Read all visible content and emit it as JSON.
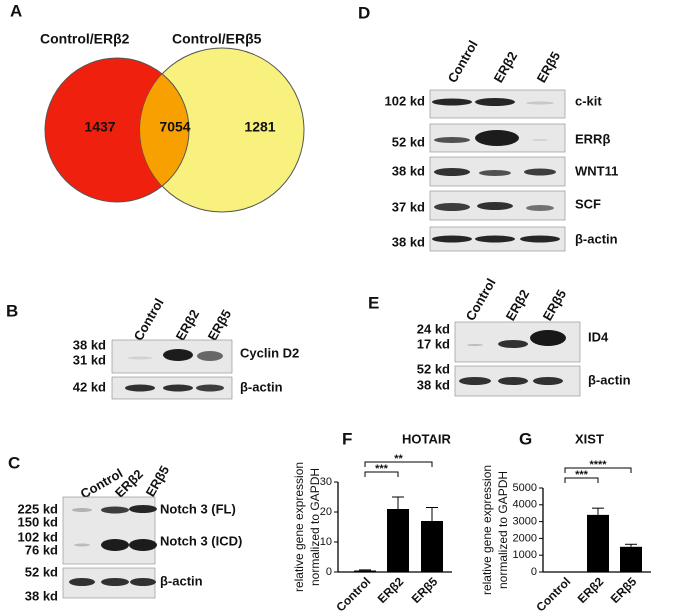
{
  "panels": {
    "A": {
      "label": "A",
      "sets": [
        "Control/ERβ2",
        "Control/ERβ5"
      ],
      "counts": [
        1437,
        7054,
        1281
      ]
    },
    "B": {
      "label": "B",
      "lanes": [
        "Control",
        "ERβ2",
        "ERβ5"
      ],
      "markers": [
        "38 kd",
        "31 kd",
        "42 kd"
      ],
      "proteins": [
        "Cyclin D2",
        "β-actin"
      ]
    },
    "C": {
      "label": "C",
      "lanes": [
        "Control",
        "ERβ2",
        "ERβ5"
      ],
      "markers": [
        "225 kd",
        "150 kd",
        "102 kd",
        "76 kd",
        "52 kd",
        "38 kd"
      ],
      "proteins": [
        "Notch 3 (FL)",
        "Notch 3 (ICD)",
        "β-actin"
      ]
    },
    "D": {
      "label": "D",
      "lanes": [
        "Control",
        "ERβ2",
        "ERβ5"
      ],
      "markers": [
        "102 kd",
        "52 kd",
        "38 kd",
        "37 kd",
        "38 kd"
      ],
      "proteins": [
        "c-kit",
        "ERRβ",
        "WNT11",
        "SCF",
        "β-actin"
      ]
    },
    "E": {
      "label": "E",
      "lanes": [
        "Control",
        "ERβ2",
        "ERβ5"
      ],
      "markers": [
        "24 kd",
        "17 kd",
        "52 kd",
        "38 kd"
      ],
      "proteins": [
        "ID4",
        "β-actin"
      ]
    }
  },
  "chart_data": [
    {
      "type": "bar",
      "label": "F",
      "title": "HOTAIR",
      "y_label": [
        "relative gene expression",
        "normalized to GAPDH"
      ],
      "categories": [
        "Control",
        "ERβ2",
        "ERβ5"
      ],
      "values": [
        0.5,
        21,
        17
      ],
      "errors": [
        0.2,
        4,
        4.5
      ],
      "ylim": [
        0,
        30
      ],
      "yticks": [
        0,
        10,
        20,
        30
      ],
      "color": "#000000",
      "significance": [
        "***",
        "**"
      ]
    },
    {
      "type": "bar",
      "label": "G",
      "title": "XIST",
      "y_label": [
        "relative gene expression",
        "normalized to GAPDH"
      ],
      "categories": [
        "Control",
        "ERβ2",
        "ERβ5"
      ],
      "values": [
        0,
        3400,
        1500
      ],
      "errors": [
        0,
        400,
        150
      ],
      "ylim": [
        0,
        5000
      ],
      "yticks": [
        0,
        1000,
        2000,
        3000,
        4000,
        5000
      ],
      "color": "#000000",
      "significance": [
        "***",
        "****"
      ]
    }
  ]
}
